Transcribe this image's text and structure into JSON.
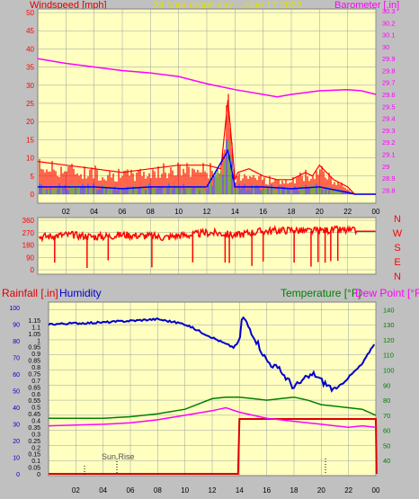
{
  "header": {
    "title": "24 hour graph day - June 17 2022",
    "left_label": "Windspeed [mph]",
    "right_label": "Barometer [.in]"
  },
  "direction_labels": [
    "N",
    "W",
    "S",
    "E",
    "N"
  ],
  "bottom_header": {
    "rainfall": "Rainfall [.in]",
    "humidity": "Humidity",
    "temperature": "Temperature [°F]",
    "dewpoint": "Dew Point [°F]"
  },
  "annotation": "Sun Rise",
  "colors": {
    "background": "#c0c0c0",
    "plot_bg": "#ffffc0",
    "grid": "#9aa0a0",
    "wind": "#ff0000",
    "gust_blue": "#0000ff",
    "gust_green": "#008000",
    "barometer": "#ff00ff",
    "direction": "#ff0000",
    "rainfall": "#dd0000",
    "humidity": "#0000cc",
    "temperature": "#008000",
    "dewpoint": "#ff00ff",
    "title": "#e0e000"
  },
  "chart_data": [
    {
      "type": "line",
      "panel": "wind-barometer",
      "x_ticks": [
        "02",
        "04",
        "06",
        "08",
        "10",
        "12",
        "14",
        "16",
        "18",
        "20",
        "22",
        "00"
      ],
      "y_left_ticks": [
        "0",
        "5",
        "10",
        "15",
        "20",
        "25",
        "30",
        "35",
        "40",
        "45",
        "50"
      ],
      "y_left_range": [
        0,
        50
      ],
      "y_right_ticks": [
        "28.8",
        "28.9",
        "29",
        "29.1",
        "29.2",
        "29.3",
        "29.4",
        "29.5",
        "29.6",
        "29.7",
        "29.8",
        "29.9",
        "30",
        "30.1",
        "30.2",
        "30.3"
      ],
      "y_right_range": [
        28.75,
        30.3
      ],
      "barometer": {
        "x": [
          0,
          2,
          4,
          6,
          8,
          10,
          12,
          14,
          16,
          17,
          18,
          20,
          22,
          23,
          24
        ],
        "values": [
          29.9,
          29.86,
          29.83,
          29.8,
          29.78,
          29.75,
          29.69,
          29.64,
          29.6,
          29.58,
          29.6,
          29.63,
          29.64,
          29.63,
          29.6
        ]
      },
      "wind_envelope": {
        "x": [
          0,
          2,
          4,
          6,
          8,
          10,
          12,
          13,
          13.5,
          14,
          14.2,
          15,
          16,
          17,
          18,
          19,
          19.5,
          20,
          21,
          22,
          22.5,
          24
        ],
        "values": [
          9,
          8,
          7,
          6,
          7,
          8,
          8,
          7,
          26,
          4,
          6,
          7,
          5,
          4,
          4,
          6,
          5,
          8,
          4,
          2,
          0,
          0
        ]
      },
      "wind_average": {
        "x": [
          0,
          2,
          4,
          6,
          8,
          10,
          12,
          13.5,
          14,
          15,
          16,
          18,
          20,
          22,
          22.5,
          24
        ],
        "values": [
          2,
          2,
          2,
          1.5,
          2,
          2,
          2,
          12,
          2,
          2,
          2,
          1.5,
          2,
          0.5,
          0,
          0
        ]
      }
    },
    {
      "type": "line",
      "panel": "wind-direction",
      "y_ticks": [
        "0",
        "90",
        "180",
        "270",
        "360"
      ],
      "y_range": [
        0,
        360
      ],
      "x": [
        0,
        1,
        2,
        3,
        4,
        5,
        6,
        7,
        8,
        9,
        10,
        11,
        12,
        13,
        14,
        15,
        16,
        17,
        18,
        19,
        20,
        21,
        22,
        23,
        24
      ],
      "values": [
        240,
        245,
        255,
        250,
        240,
        245,
        255,
        250,
        245,
        235,
        250,
        255,
        270,
        265,
        250,
        270,
        280,
        285,
        290,
        280,
        285,
        290,
        285,
        280,
        280
      ]
    },
    {
      "type": "line",
      "panel": "rain-humidity-temperature",
      "y_rain_ticks": [
        "0",
        "0.05",
        "0.1",
        "0.15",
        "0.2",
        "0.25",
        "0.3",
        "0.35",
        "0.4",
        "0.45",
        "0.5",
        "0.55",
        "0.6",
        "0.65",
        "0.7",
        "0.75",
        "0.8",
        "0.85",
        "0.9",
        "0.95",
        "1",
        "1.05",
        "1.1",
        "1.15"
      ],
      "y_humidity_ticks": [
        "0",
        "10",
        "20",
        "30",
        "40",
        "50",
        "60",
        "70",
        "80",
        "90",
        "100"
      ],
      "y_temp_ticks": [
        "40",
        "50",
        "60",
        "70",
        "80",
        "90",
        "100",
        "110",
        "120",
        "130",
        "140"
      ],
      "y_temp_range": [
        30,
        145
      ],
      "rainfall": {
        "x": [
          0,
          13.9,
          14,
          24,
          24.05
        ],
        "values": [
          0,
          0,
          0.41,
          0.41,
          0
        ]
      },
      "humidity": {
        "x": [
          0,
          4,
          6,
          8,
          10,
          11,
          12,
          13,
          13.6,
          14,
          14.2,
          15,
          16,
          17,
          18,
          19,
          19.5,
          20,
          21,
          22,
          23,
          24
        ],
        "values": [
          90,
          91,
          92,
          93,
          90,
          86,
          82,
          78,
          76,
          80,
          95,
          84,
          68,
          62,
          52,
          58,
          60,
          56,
          50,
          58,
          66,
          80
        ]
      },
      "temperature": {
        "x": [
          0,
          4,
          6,
          8,
          10,
          12,
          13,
          14,
          15,
          16,
          17,
          18,
          19,
          20,
          21,
          22,
          23,
          24
        ],
        "values": [
          68,
          68,
          69,
          71,
          74,
          81,
          82,
          82,
          81,
          80,
          81,
          82,
          80,
          77,
          76,
          75,
          74,
          70
        ]
      },
      "dewpoint": {
        "x": [
          0,
          4,
          6,
          8,
          10,
          12,
          13,
          14,
          15,
          16,
          17,
          18,
          19,
          20,
          21,
          22,
          23,
          24
        ],
        "values": [
          63,
          64,
          65,
          67,
          70,
          73,
          75,
          72,
          70,
          68,
          67,
          66,
          65,
          64,
          63,
          62,
          63,
          62
        ]
      }
    }
  ]
}
